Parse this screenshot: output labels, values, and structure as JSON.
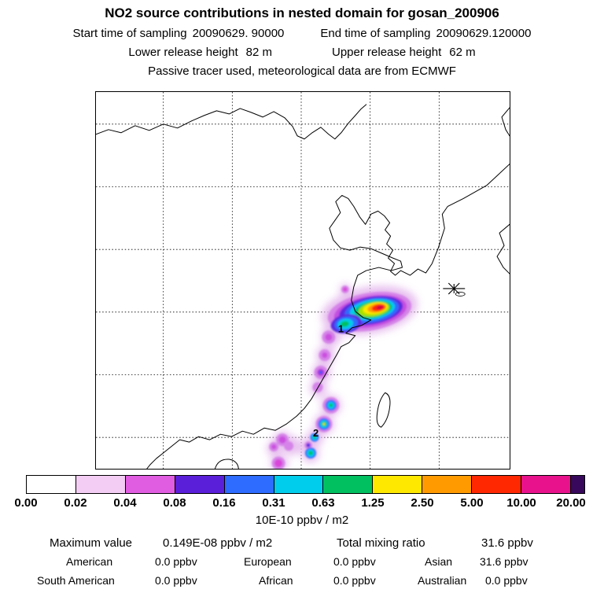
{
  "header": {
    "title": "NO2 source contributions in nested domain for gosan_200906",
    "sampling": {
      "start_label": "Start time of sampling",
      "start_value": "20090629. 90000",
      "end_label": "End time of sampling",
      "end_value": "20090629.120000"
    },
    "release": {
      "lower_label": "Lower release height",
      "lower_value": "82 m",
      "upper_label": "Upper release height",
      "upper_value": "62 m"
    },
    "note": "Passive tracer used, meteorological data are from ECMWF"
  },
  "map": {
    "station": "gosan",
    "release_markers": [
      {
        "label": "1"
      },
      {
        "label": "2"
      }
    ]
  },
  "colorbar": {
    "labels": [
      "0.00",
      "0.02",
      "0.04",
      "0.08",
      "0.16",
      "0.31",
      "0.63",
      "1.25",
      "2.50",
      "5.00",
      "10.00",
      "20.00"
    ],
    "colors": [
      "#ffffff",
      "#f3cdf3",
      "#e05ce0",
      "#5a1fd8",
      "#2e6cff",
      "#00cdeb",
      "#00c060",
      "#ffe800",
      "#ff9a00",
      "#ff2800",
      "#e8128c"
    ],
    "overflow_color": "#38085c",
    "units": "10E-10 ppbv / m2"
  },
  "stats": {
    "max_label": "Maximum value",
    "max_value": "0.149E-08 ppbv / m2",
    "total_label": "Total mixing ratio",
    "total_value": "31.6 ppbv",
    "regions": [
      {
        "name": "American",
        "value": "0.0 ppbv"
      },
      {
        "name": "European",
        "value": "0.0 ppbv"
      },
      {
        "name": "Asian",
        "value": "31.6 ppbv"
      },
      {
        "name": "South American",
        "value": "0.0 ppbv"
      },
      {
        "name": "African",
        "value": "0.0 ppbv"
      },
      {
        "name": "Australian",
        "value": "0.0 ppbv"
      }
    ]
  },
  "chart_data": {
    "type": "heatmap",
    "title": "NO2 source contributions in nested domain for gosan_200906",
    "region": "East Asia (China coast, Korea, Taiwan); source-contribution footprint map",
    "station": "gosan",
    "sampling": {
      "start": "20090629. 90000",
      "end": "20090629.120000"
    },
    "release_heights_m": {
      "lower": 82,
      "upper": 62
    },
    "tracer_note": "Passive tracer used, meteorological data are from ECMWF",
    "colorbar_levels": [
      0.0,
      0.02,
      0.04,
      0.08,
      0.16,
      0.31,
      0.63,
      1.25,
      2.5,
      5.0,
      10.0,
      20.0
    ],
    "colorbar_units": "10E-10 ppbv / m2",
    "colorbar_colors": [
      "#ffffff",
      "#f3cdf3",
      "#e05ce0",
      "#5a1fd8",
      "#2e6cff",
      "#00cdeb",
      "#00c060",
      "#ffe800",
      "#ff9a00",
      "#ff2800",
      "#e8128c",
      "#38085c"
    ],
    "maximum_value": "0.149E-08 ppbv / m2",
    "total_mixing_ratio_ppbv": 31.6,
    "contributions_ppbv": {
      "American": 0.0,
      "European": 0.0,
      "Asian": 31.6,
      "South American": 0.0,
      "African": 0.0,
      "Australian": 0.0
    },
    "release_points": [
      {
        "label": "1"
      },
      {
        "label": "2"
      }
    ],
    "legend_position": "bottom",
    "grid": true
  }
}
